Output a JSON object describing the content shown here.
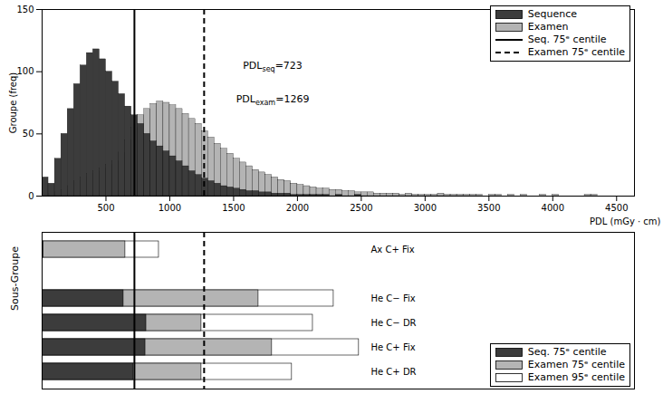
{
  "chart_data": [
    {
      "type": "histogram",
      "x_label": "PDL (mGy · cm)",
      "y_label": "Groupe (freq)",
      "xlim": [
        0,
        4640
      ],
      "xticks": [
        500,
        1000,
        1500,
        2000,
        2500,
        3000,
        3500,
        4000,
        4500
      ],
      "ylim": [
        0,
        150
      ],
      "yticks": [
        0,
        50,
        100,
        150
      ],
      "grid": false,
      "legend": "top-right",
      "bins": [
        0,
        50,
        100,
        150,
        200,
        250,
        300,
        350,
        400,
        450,
        500,
        550,
        600,
        650,
        700,
        750,
        800,
        850,
        900,
        950,
        1000,
        1050,
        1100,
        1150,
        1200,
        1250,
        1300,
        1350,
        1400,
        1450,
        1500,
        1550,
        1600,
        1650,
        1700,
        1750,
        1800,
        1850,
        1900,
        1950,
        2000,
        2050,
        2100,
        2150,
        2200,
        2250,
        2300,
        2350,
        2400,
        2450,
        2500,
        2550,
        2600,
        2650,
        2700,
        2750,
        2800,
        2850,
        2900,
        2950,
        3000,
        3050,
        3100,
        3150,
        3200,
        3250,
        3300,
        3350,
        3400,
        3450,
        3500,
        3550,
        3600,
        3650,
        3700,
        3750,
        3800,
        3850,
        3900,
        3950,
        4000,
        4050,
        4100,
        4150,
        4200,
        4250,
        4300,
        4350,
        4400,
        4450,
        4500
      ],
      "series": [
        {
          "name": "Sequence",
          "color": "#3c3c3c",
          "values": [
            15,
            10,
            30,
            50,
            70,
            90,
            105,
            115,
            118,
            110,
            100,
            92,
            82,
            72,
            65,
            58,
            50,
            44,
            40,
            36,
            32,
            28,
            24,
            20,
            17,
            14,
            12,
            10,
            8,
            7,
            6,
            5,
            4,
            4,
            3,
            3,
            2,
            2,
            2,
            1,
            1,
            1,
            1,
            1,
            1,
            0,
            1,
            0,
            0,
            1,
            0,
            0,
            0,
            0,
            0,
            0,
            0,
            0,
            0,
            0,
            0,
            0,
            0,
            0,
            0,
            0,
            0,
            0,
            0,
            0,
            0,
            0,
            0,
            0,
            0,
            0,
            0,
            0,
            0,
            0,
            0,
            0,
            0,
            0,
            0,
            0,
            0,
            0,
            0,
            0
          ]
        },
        {
          "name": "Examen",
          "color": "#b4b4b4",
          "values": [
            2,
            2,
            3,
            5,
            8,
            12,
            15,
            18,
            20,
            22,
            25,
            28,
            35,
            45,
            55,
            65,
            70,
            74,
            76,
            75,
            73,
            70,
            66,
            62,
            58,
            52,
            47,
            42,
            38,
            34,
            30,
            27,
            24,
            21,
            19,
            17,
            15,
            13,
            12,
            10,
            9,
            8,
            7,
            6,
            6,
            5,
            5,
            4,
            4,
            3,
            3,
            3,
            2,
            2,
            2,
            2,
            1,
            2,
            1,
            1,
            1,
            1,
            2,
            1,
            1,
            1,
            1,
            1,
            1,
            0,
            1,
            1,
            0,
            1,
            0,
            1,
            0,
            0,
            1,
            0,
            1,
            0,
            0,
            0,
            0,
            1,
            1,
            0,
            0,
            0
          ]
        }
      ],
      "reference_lines": [
        {
          "name": "Seq. 75ᵉ centile",
          "value": 723,
          "color": "#000000",
          "line_style": "solid"
        },
        {
          "name": "Examen 75ᵉ centile",
          "value": 1269,
          "color": "#000000",
          "line_style": "dashed"
        }
      ],
      "annotations": [
        {
          "text": "PDL",
          "subscript": "seq",
          "suffix": "=723"
        },
        {
          "text": "PDL",
          "subscript": "exam",
          "suffix": "=1269"
        }
      ]
    },
    {
      "type": "bar",
      "orientation": "horizontal",
      "y_label": "Sous-Groupe",
      "xlim": [
        0,
        4640
      ],
      "tick_labels": "y",
      "grid": false,
      "legend": "bottom-right",
      "categories": [
        "Ax C+ Fix",
        null,
        "He C− Fix",
        "He C− DR",
        "He C+ Fix",
        "He C+ DR"
      ],
      "series": [
        {
          "name": "Seq. 75ᵉ centile",
          "color": "#3c3c3c",
          "values": [
            10,
            null,
            638,
            816,
            809,
            716
          ]
        },
        {
          "name": "Examen 75ᵉ centile",
          "color": "#b4b4b4",
          "values": [
            652,
            null,
            1695,
            1248,
            1801,
            1248
          ]
        },
        {
          "name": "Examen 95ᵉ centile",
          "color": "#ffffff",
          "values": [
            915,
            null,
            2284,
            2121,
            2482,
            1957
          ]
        }
      ]
    }
  ]
}
